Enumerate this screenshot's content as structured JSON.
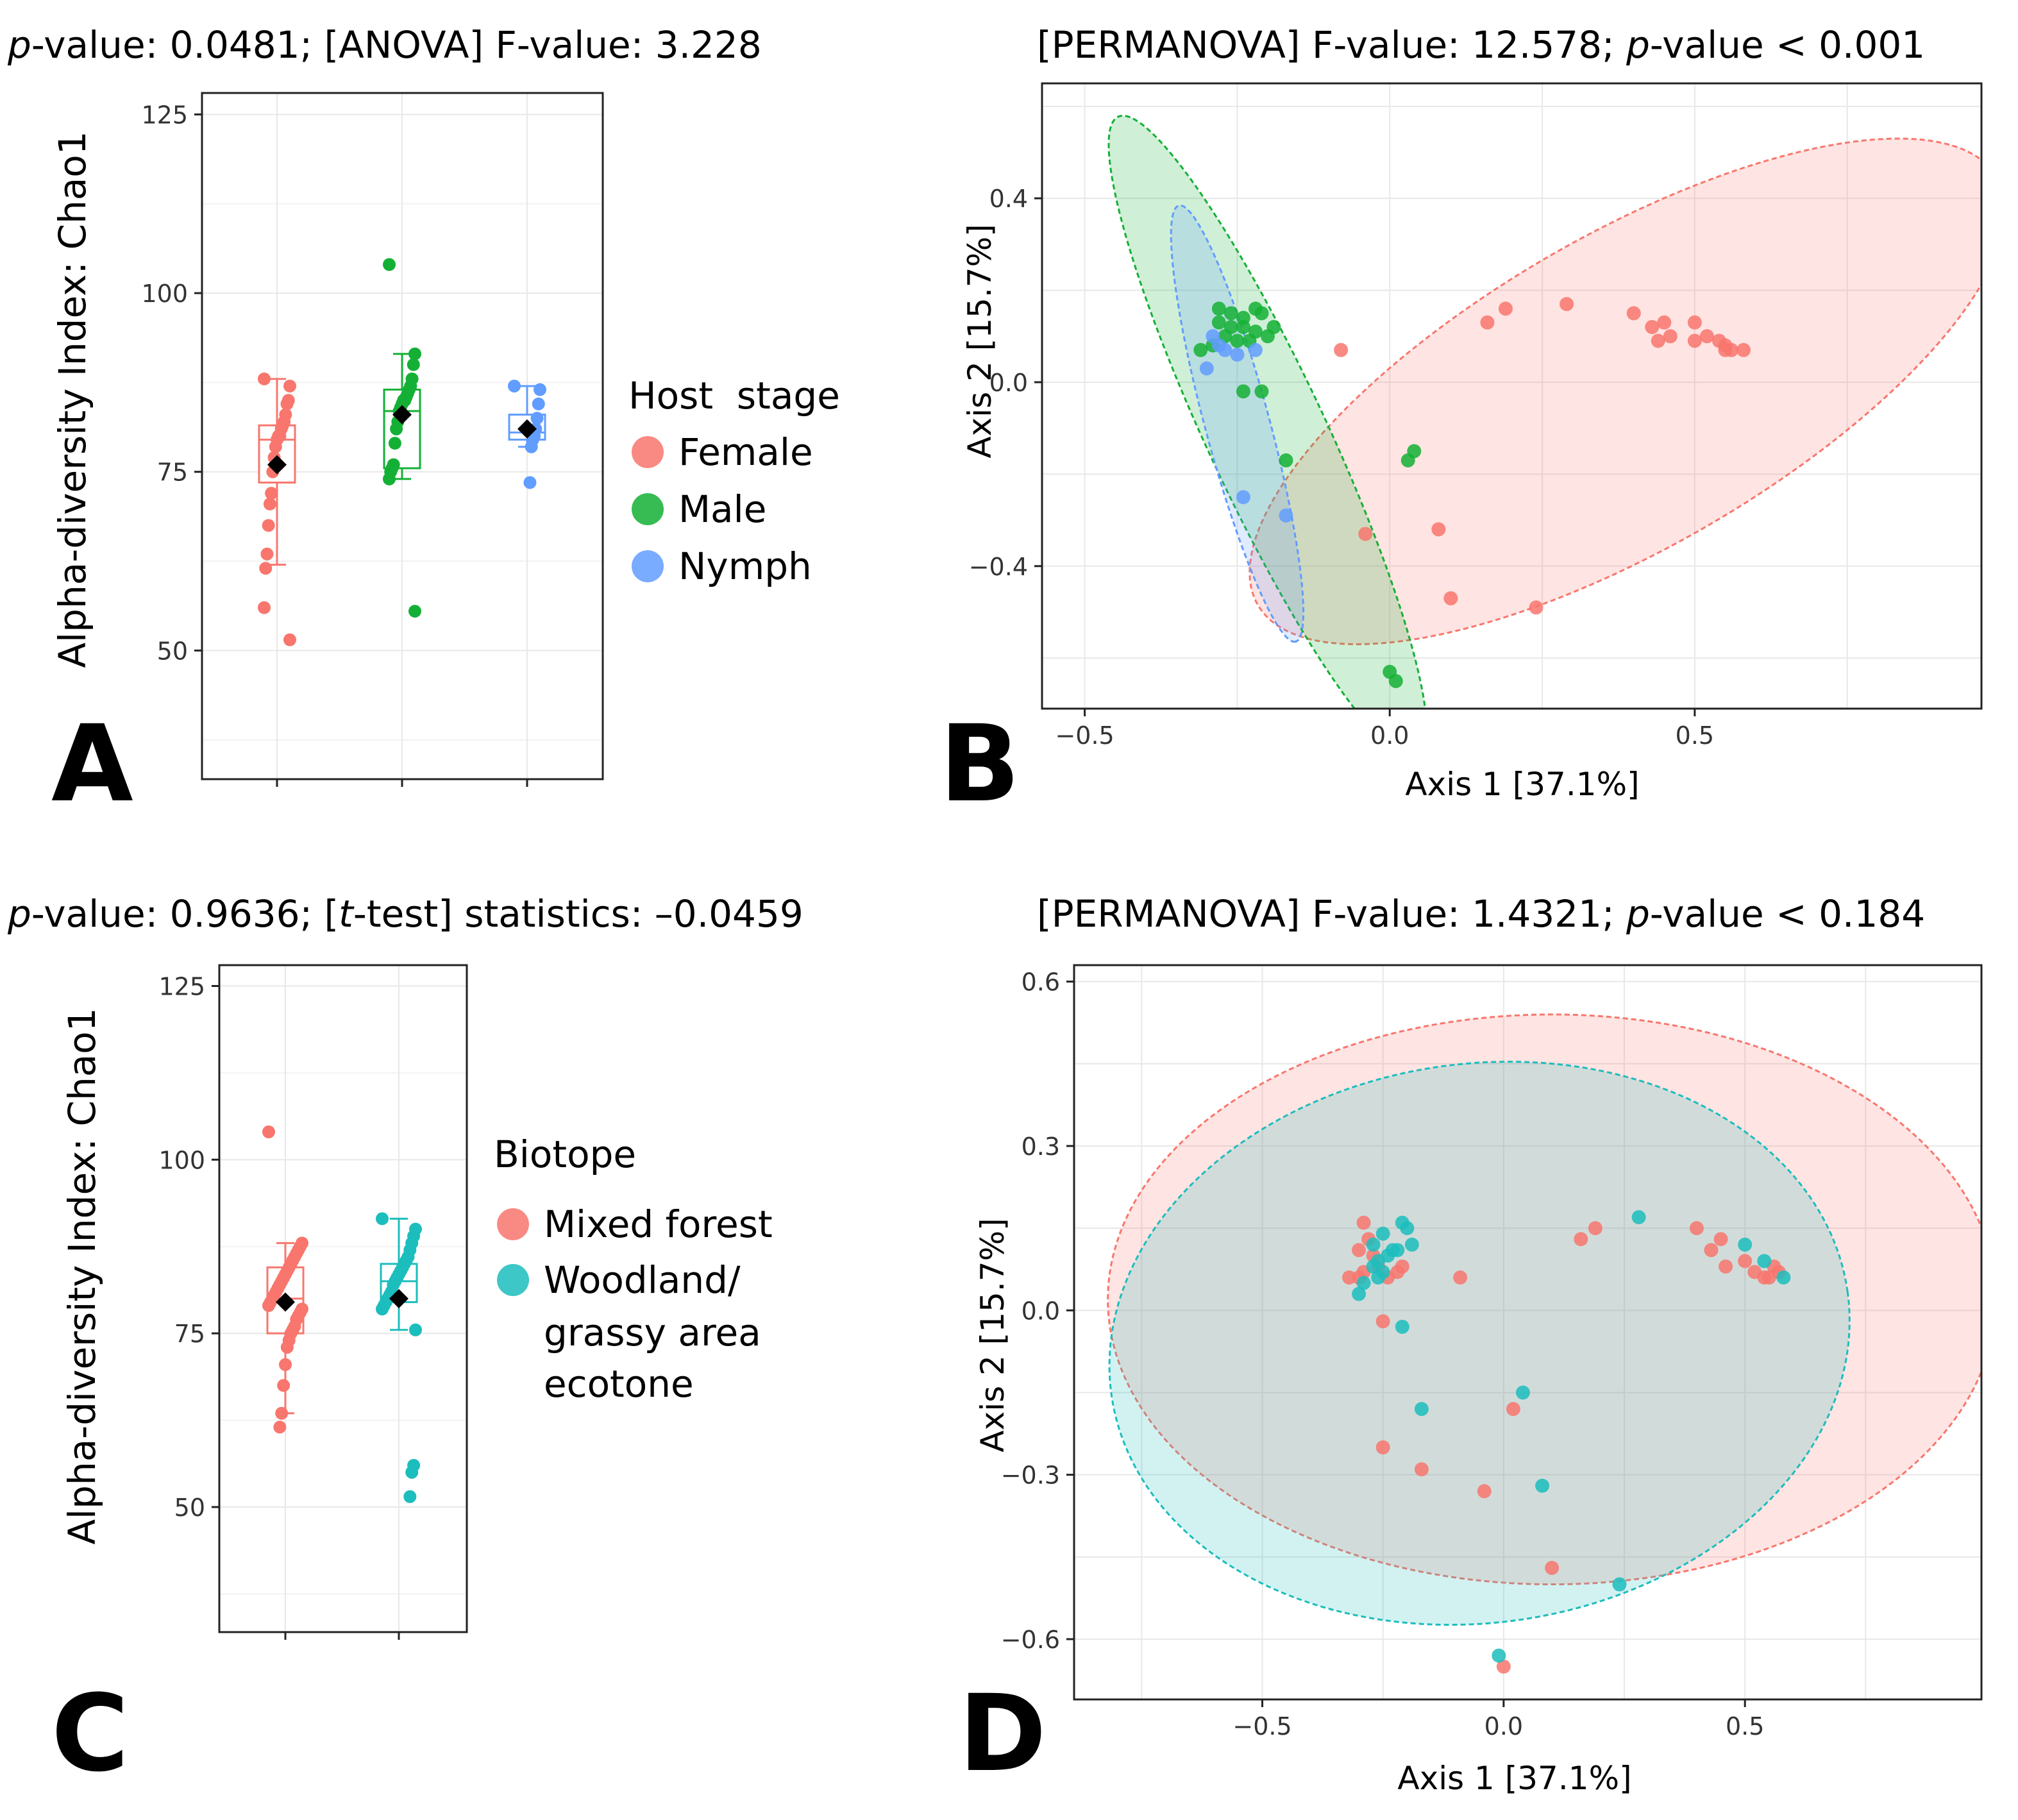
{
  "colors": {
    "female": "#F8766D",
    "male": "#14B035",
    "nymph": "#619CFF",
    "forest": "#F8766D",
    "woodland": "#1CBDBD",
    "grid": "#E8E8E8",
    "frame": "#222222",
    "text": "#000000"
  },
  "chart_data": [
    {
      "panel": "A",
      "type": "boxplot",
      "title": {
        "p_label": "p",
        "rest": "-value: 0.0481; [ANOVA] F-value: 3.228"
      },
      "ylabel": "Alpha-diversity Index: Chao1",
      "ylim": [
        32,
        128
      ],
      "yticks": [
        50,
        75,
        100,
        125
      ],
      "legend": {
        "title": "Host  stage",
        "items": [
          "Female",
          "Male",
          "Nymph"
        ]
      },
      "groups": [
        {
          "name": "Female",
          "q1": 73.5,
          "median": 79.5,
          "q3": 81.5,
          "whisker_low": 62,
          "whisker_high": 88,
          "mean": 76,
          "points": [
            88,
            87,
            85,
            84.5,
            83,
            82,
            81.5,
            81,
            80,
            80,
            79.5,
            78.5,
            77,
            75,
            72,
            70.5,
            67.5,
            63.5,
            61.5,
            56,
            51.5
          ]
        },
        {
          "name": "Male",
          "q1": 75.5,
          "median": 83.5,
          "q3": 86.5,
          "whisker_low": 74,
          "whisker_high": 91.5,
          "mean": 83,
          "points": [
            104,
            91.5,
            90,
            88,
            87,
            86.5,
            86,
            85.5,
            85,
            85,
            84.5,
            84,
            83.5,
            82,
            81,
            79,
            76,
            75.5,
            75,
            74,
            55.5
          ]
        },
        {
          "name": "Nymph",
          "q1": 79.5,
          "median": 80.5,
          "q3": 83,
          "whisker_low": 78.5,
          "whisker_high": 87,
          "mean": 81,
          "points": [
            87,
            86.5,
            84.5,
            82.5,
            81,
            80,
            79.5,
            78.5,
            73.5
          ]
        }
      ]
    },
    {
      "panel": "B",
      "type": "scatter",
      "title": {
        "pre": "[PERMANOVA] F-value: 12.578; ",
        "p_label": "p",
        "rest": "-value < 0.001"
      },
      "xlabel": "Axis 1 [37.1%]",
      "ylabel": "Axis 2 [15.7%]",
      "xlim": [
        -0.57,
        0.97
      ],
      "ylim": [
        -0.71,
        0.65
      ],
      "xticks": [
        -0.5,
        0.0,
        0.5
      ],
      "yticks": [
        0.4,
        0.0,
        -0.4
      ],
      "series": [
        {
          "name": "Female",
          "ellipse": {
            "cx": 0.39,
            "cy": -0.02,
            "rx": 0.7,
            "ry": 0.34,
            "angle_deg": -30
          },
          "points": [
            [
              0.16,
              0.13
            ],
            [
              0.19,
              0.16
            ],
            [
              0.29,
              0.17
            ],
            [
              0.4,
              0.15
            ],
            [
              0.43,
              0.12
            ],
            [
              0.45,
              0.13
            ],
            [
              0.44,
              0.09
            ],
            [
              0.46,
              0.1
            ],
            [
              0.5,
              0.13
            ],
            [
              0.52,
              0.1
            ],
            [
              0.5,
              0.09
            ],
            [
              0.54,
              0.09
            ],
            [
              0.55,
              0.08
            ],
            [
              0.56,
              0.07
            ],
            [
              0.58,
              0.07
            ],
            [
              0.55,
              0.07
            ],
            [
              -0.08,
              0.07
            ],
            [
              -0.04,
              -0.33
            ],
            [
              0.08,
              -0.32
            ],
            [
              0.1,
              -0.47
            ],
            [
              0.24,
              -0.49
            ]
          ]
        },
        {
          "name": "Male",
          "ellipse": {
            "cx": -0.2,
            "cy": -0.12,
            "rx": 0.58,
            "ry": 0.13,
            "angle_deg": 65
          },
          "points": [
            [
              -0.28,
              0.16
            ],
            [
              -0.26,
              0.15
            ],
            [
              -0.24,
              0.14
            ],
            [
              -0.22,
              0.16
            ],
            [
              -0.21,
              0.15
            ],
            [
              -0.28,
              0.13
            ],
            [
              -0.26,
              0.12
            ],
            [
              -0.24,
              0.12
            ],
            [
              -0.22,
              0.11
            ],
            [
              -0.19,
              0.12
            ],
            [
              -0.27,
              0.1
            ],
            [
              -0.25,
              0.09
            ],
            [
              -0.23,
              0.09
            ],
            [
              -0.2,
              0.1
            ],
            [
              -0.31,
              0.07
            ],
            [
              -0.29,
              0.08
            ],
            [
              -0.24,
              -0.02
            ],
            [
              -0.21,
              -0.02
            ],
            [
              -0.17,
              -0.17
            ],
            [
              0.04,
              -0.15
            ],
            [
              0.03,
              -0.17
            ],
            [
              0.0,
              -0.63
            ],
            [
              0.01,
              -0.65
            ]
          ]
        },
        {
          "name": "Nymph",
          "ellipse": {
            "cx": -0.25,
            "cy": -0.09,
            "rx": 0.37,
            "ry": 0.07,
            "angle_deg": 75
          },
          "points": [
            [
              -0.29,
              0.1
            ],
            [
              -0.28,
              0.08
            ],
            [
              -0.27,
              0.07
            ],
            [
              -0.25,
              0.06
            ],
            [
              -0.22,
              0.07
            ],
            [
              -0.3,
              0.03
            ],
            [
              -0.24,
              -0.25
            ],
            [
              -0.17,
              -0.29
            ]
          ]
        }
      ]
    },
    {
      "panel": "C",
      "type": "boxplot",
      "title": {
        "p_label": "p",
        "mid": "-value: 0.9636; [",
        "t_label": "t",
        "rest": "-test] statistics: –0.0459"
      },
      "ylabel": "Alpha-diversity Index: Chao1",
      "ylim": [
        32,
        128
      ],
      "yticks": [
        50,
        75,
        100,
        125
      ],
      "legend": {
        "title": "Biotope",
        "items": [
          "Mixed forest",
          "Woodland/",
          "grassy area",
          "ecotone"
        ]
      },
      "groups": [
        {
          "name": "Mixed forest",
          "q1": 75,
          "median": 80,
          "q3": 84.5,
          "whisker_low": 63.5,
          "whisker_high": 88,
          "mean": 79.5,
          "points": [
            104,
            88,
            87.5,
            87,
            86.5,
            86,
            85.5,
            85,
            84.5,
            84,
            83.5,
            83,
            82.5,
            82,
            81.5,
            81,
            80.5,
            80,
            79.5,
            79,
            78.5,
            78,
            77.5,
            77,
            76,
            75.5,
            75,
            74,
            73,
            70.5,
            67.5,
            63.5,
            61.5
          ]
        },
        {
          "name": "Woodland/ grassy area ecotone",
          "q1": 79.5,
          "median": 82.5,
          "q3": 85,
          "whisker_low": 75.5,
          "whisker_high": 91.5,
          "mean": 80,
          "points": [
            91.5,
            90,
            89,
            88,
            87,
            86,
            85.5,
            85,
            84.5,
            84,
            83.5,
            83,
            82.5,
            82,
            81,
            80.5,
            80,
            79.5,
            79,
            78.5,
            75.5,
            56,
            55,
            51.5
          ]
        }
      ]
    },
    {
      "panel": "D",
      "type": "scatter",
      "title": {
        "pre": "[PERMANOVA] F-value: 1.4321; ",
        "p_label": "p",
        "rest": "-value < 0.184"
      },
      "xlabel": "Axis 1 [37.1%]",
      "ylabel": "Axis 2 [15.7%]",
      "xlim": [
        -0.89,
        0.99
      ],
      "ylim": [
        -0.71,
        0.63
      ],
      "xticks": [
        -0.5,
        0.0,
        0.5
      ],
      "yticks": [
        0.6,
        0.3,
        0.0,
        -0.3,
        -0.6
      ],
      "series": [
        {
          "name": "Mixed forest",
          "ellipse": {
            "cx": 0.1,
            "cy": 0.02,
            "rx": 0.92,
            "ry": 0.52,
            "angle_deg": 0
          },
          "points": [
            [
              -0.29,
              0.16
            ],
            [
              -0.28,
              0.13
            ],
            [
              -0.3,
              0.11
            ],
            [
              -0.27,
              0.1
            ],
            [
              -0.29,
              0.07
            ],
            [
              -0.26,
              0.08
            ],
            [
              -0.24,
              0.06
            ],
            [
              -0.22,
              0.07
            ],
            [
              -0.21,
              0.08
            ],
            [
              -0.32,
              0.06
            ],
            [
              -0.3,
              0.06
            ],
            [
              -0.25,
              -0.02
            ],
            [
              -0.09,
              0.06
            ],
            [
              0.16,
              0.13
            ],
            [
              0.19,
              0.15
            ],
            [
              0.4,
              0.15
            ],
            [
              0.43,
              0.11
            ],
            [
              0.45,
              0.13
            ],
            [
              0.46,
              0.08
            ],
            [
              0.5,
              0.09
            ],
            [
              0.52,
              0.07
            ],
            [
              0.54,
              0.06
            ],
            [
              0.55,
              0.06
            ],
            [
              0.57,
              0.07
            ],
            [
              0.56,
              0.08
            ],
            [
              0.02,
              -0.18
            ],
            [
              -0.25,
              -0.25
            ],
            [
              -0.17,
              -0.29
            ],
            [
              -0.04,
              -0.33
            ],
            [
              0.1,
              -0.47
            ],
            [
              0.0,
              -0.65
            ]
          ]
        },
        {
          "name": "Woodland/ grassy area ecotone",
          "ellipse": {
            "cx": -0.05,
            "cy": -0.06,
            "rx": 0.77,
            "ry": 0.51,
            "angle_deg": -8
          },
          "points": [
            [
              -0.27,
              0.12
            ],
            [
              -0.25,
              0.14
            ],
            [
              -0.23,
              0.11
            ],
            [
              -0.21,
              0.16
            ],
            [
              -0.2,
              0.15
            ],
            [
              -0.19,
              0.12
            ],
            [
              -0.26,
              0.09
            ],
            [
              -0.24,
              0.1
            ],
            [
              -0.22,
              0.11
            ],
            [
              -0.25,
              0.07
            ],
            [
              -0.27,
              0.08
            ],
            [
              -0.29,
              0.05
            ],
            [
              -0.26,
              0.06
            ],
            [
              -0.3,
              0.03
            ],
            [
              -0.21,
              -0.03
            ],
            [
              0.28,
              0.17
            ],
            [
              0.5,
              0.12
            ],
            [
              0.54,
              0.09
            ],
            [
              0.58,
              0.06
            ],
            [
              0.04,
              -0.15
            ],
            [
              -0.17,
              -0.18
            ],
            [
              0.08,
              -0.32
            ],
            [
              0.24,
              -0.5
            ],
            [
              -0.01,
              -0.63
            ]
          ]
        }
      ]
    }
  ],
  "panel_labels": [
    "A",
    "B",
    "C",
    "D"
  ]
}
